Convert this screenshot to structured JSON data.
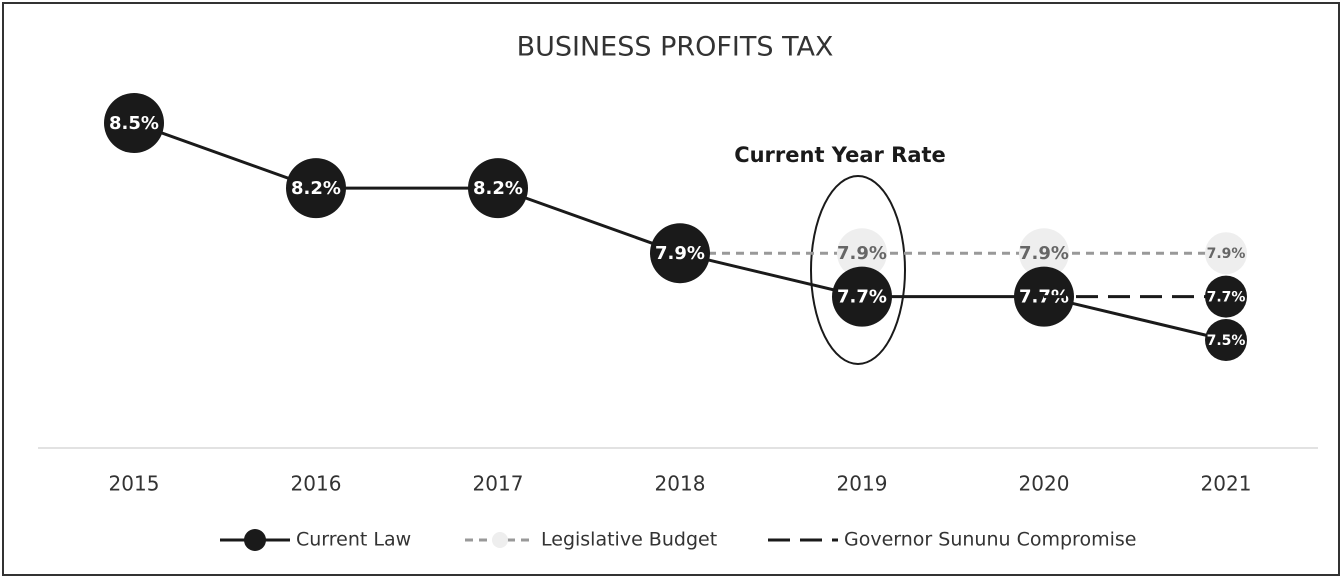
{
  "chart_data": {
    "type": "line",
    "title": "BUSINESS PROFITS TAX",
    "annotation": "Current Year Rate",
    "categories": [
      "2015",
      "2016",
      "2017",
      "2018",
      "2019",
      "2020",
      "2021"
    ],
    "series": [
      {
        "name": "Legislative Budget",
        "color": "#999999",
        "marker_color": "#eeeeee",
        "label_color": "#666666",
        "dash": "dashed",
        "values": [
          null,
          null,
          null,
          7.9,
          7.9,
          7.9,
          7.9
        ],
        "value_labels": [
          null,
          null,
          null,
          "7.9%",
          "7.9%",
          "7.9%",
          "7.9%"
        ]
      },
      {
        "name": "Current Law",
        "color": "#1a1a1a",
        "marker_color": "#1a1a1a",
        "label_color": "#ffffff",
        "dash": "solid",
        "values": [
          8.5,
          8.2,
          8.2,
          7.9,
          7.7,
          7.7,
          7.5
        ],
        "value_labels": [
          "8.5%",
          "8.2%",
          "8.2%",
          "7.9%",
          "7.7%",
          "7.7%",
          "7.5%"
        ]
      },
      {
        "name": "Governor Sununu Compromise",
        "color": "#1a1a1a",
        "marker_color": "#1a1a1a",
        "label_color": "#ffffff",
        "dash": "long-dash",
        "values": [
          null,
          null,
          null,
          null,
          null,
          7.7,
          7.7
        ],
        "value_labels": [
          null,
          null,
          null,
          null,
          null,
          "7.7%",
          "7.7%"
        ]
      }
    ]
  }
}
